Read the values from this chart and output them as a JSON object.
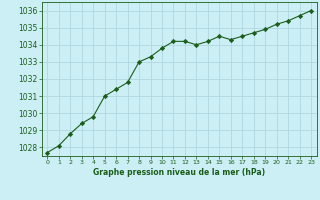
{
  "x": [
    0,
    1,
    2,
    3,
    4,
    5,
    6,
    7,
    8,
    9,
    10,
    11,
    12,
    13,
    14,
    15,
    16,
    17,
    18,
    19,
    20,
    21,
    22,
    23
  ],
  "y": [
    1027.7,
    1028.1,
    1028.8,
    1029.4,
    1029.8,
    1031.0,
    1031.4,
    1031.8,
    1033.0,
    1033.3,
    1033.8,
    1034.2,
    1034.2,
    1034.0,
    1034.2,
    1034.5,
    1034.3,
    1034.5,
    1034.7,
    1034.9,
    1035.2,
    1035.4,
    1035.7,
    1036.0
  ],
  "line_color": "#1a5e1a",
  "marker": "D",
  "marker_size": 2.2,
  "bg_color": "#cceef5",
  "grid_color": "#b0d8e0",
  "xlabel": "Graphe pression niveau de la mer (hPa)",
  "xlabel_color": "#1a5e1a",
  "tick_color": "#1a5e1a",
  "ylim": [
    1027.5,
    1036.5
  ],
  "xlim": [
    -0.5,
    23.5
  ],
  "yticks": [
    1028,
    1029,
    1030,
    1031,
    1032,
    1033,
    1034,
    1035,
    1036
  ],
  "xtick_labels": [
    "0",
    "1",
    "2",
    "3",
    "4",
    "5",
    "6",
    "7",
    "8",
    "9",
    "10",
    "11",
    "12",
    "13",
    "14",
    "15",
    "16",
    "17",
    "18",
    "19",
    "20",
    "21",
    "22",
    "23"
  ]
}
